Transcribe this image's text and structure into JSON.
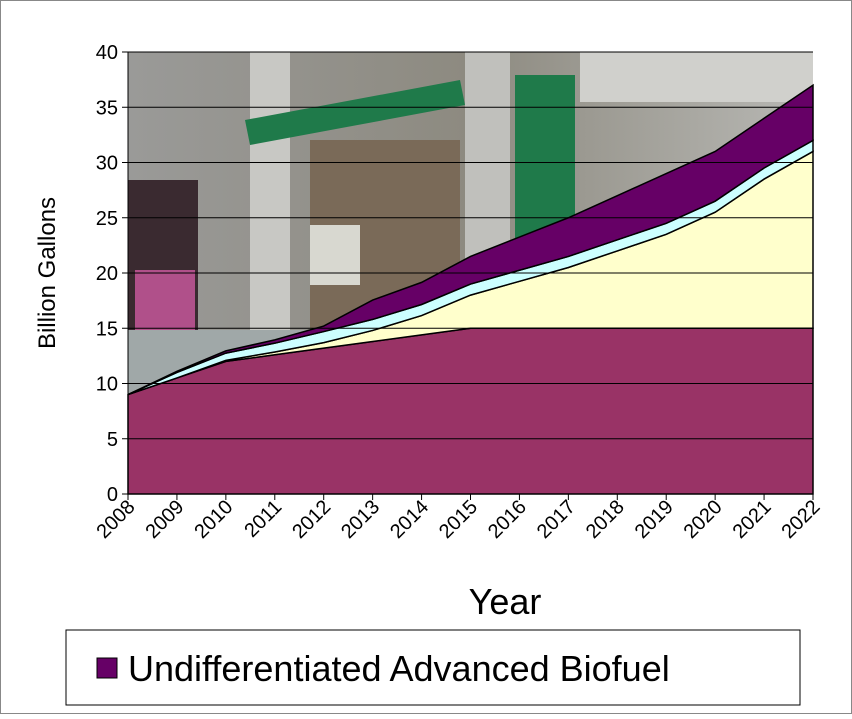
{
  "chart_data": {
    "type": "stacked-area",
    "y_label": "Billion Gallons",
    "x_label": "Year",
    "categories": [
      "2008",
      "2009",
      "2010",
      "2011",
      "2012",
      "2013",
      "2014",
      "2015",
      "2016",
      "2017",
      "2018",
      "2019",
      "2020",
      "2021",
      "2022"
    ],
    "series": [
      {
        "color": "#993366",
        "values": [
          9,
          10.5,
          12,
          12.6,
          13.2,
          13.8,
          14.4,
          15,
          15,
          15,
          15,
          15,
          15,
          15,
          15
        ]
      },
      {
        "color": "#ffffcc",
        "values": [
          0,
          0,
          0.1,
          0.25,
          0.5,
          1,
          1.75,
          3,
          4.25,
          5.5,
          7,
          8.5,
          10.5,
          13.5,
          16
        ]
      },
      {
        "color": "#ccffff",
        "values": [
          0,
          0.5,
          0.65,
          0.8,
          1,
          1,
          1,
          1,
          1,
          1,
          1,
          1,
          1,
          1,
          1
        ]
      },
      {
        "name": "Undifferentiated Advanced Biofuel",
        "color": "#660066",
        "values": [
          0,
          0.1,
          0.2,
          0.3,
          0.5,
          1.75,
          2,
          2.5,
          3,
          3.5,
          4,
          4.5,
          4.5,
          4.5,
          5
        ]
      }
    ],
    "ylim": [
      0,
      40
    ],
    "yticks": [
      0,
      5,
      10,
      15,
      20,
      25,
      30,
      35,
      40
    ],
    "grid": true
  }
}
